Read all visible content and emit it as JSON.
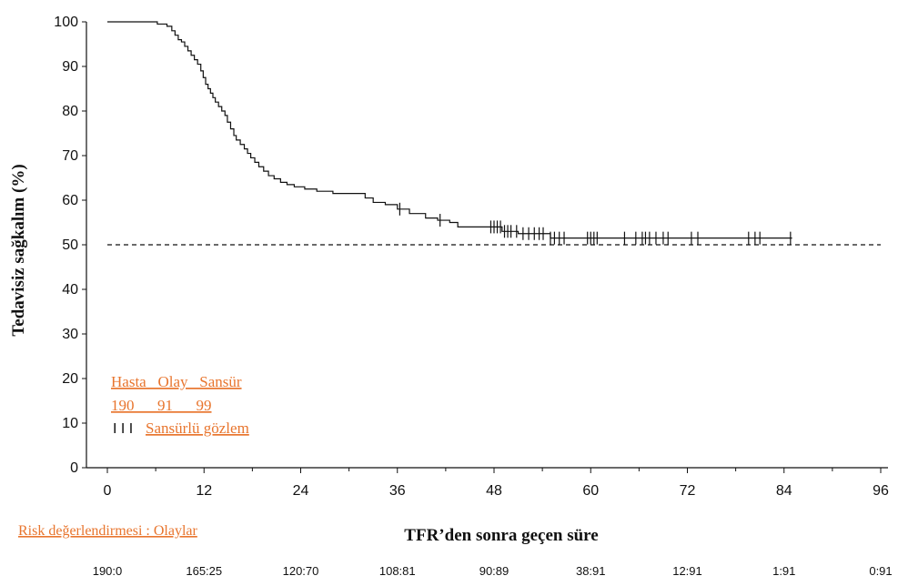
{
  "chart_data": {
    "type": "line",
    "ylabel": "Tedavisiz sağkalım (%)",
    "xlabel": "TFR’den sonra geçen süre",
    "xlim": [
      0,
      96
    ],
    "ylim": [
      0,
      100
    ],
    "xticks": [
      0,
      12,
      24,
      36,
      48,
      60,
      72,
      84,
      96
    ],
    "yticks": [
      0,
      10,
      20,
      30,
      40,
      50,
      60,
      70,
      80,
      90,
      100
    ],
    "reference_line_y": 50,
    "survival_curve": [
      [
        0,
        100
      ],
      [
        5.5,
        100
      ],
      [
        6.2,
        99.5
      ],
      [
        6.8,
        99.5
      ],
      [
        7.4,
        99
      ],
      [
        8,
        98
      ],
      [
        8.4,
        97
      ],
      [
        8.8,
        96
      ],
      [
        9.2,
        95.5
      ],
      [
        9.6,
        94.5
      ],
      [
        10,
        93.5
      ],
      [
        10.4,
        92.5
      ],
      [
        10.8,
        91.5
      ],
      [
        11.2,
        90.5
      ],
      [
        11.6,
        89
      ],
      [
        11.9,
        87.5
      ],
      [
        12.2,
        86
      ],
      [
        12.5,
        85
      ],
      [
        12.8,
        84
      ],
      [
        13.1,
        83
      ],
      [
        13.4,
        82
      ],
      [
        13.8,
        81
      ],
      [
        14.2,
        80
      ],
      [
        14.6,
        79
      ],
      [
        14.9,
        77.5
      ],
      [
        15.3,
        76
      ],
      [
        15.7,
        74.5
      ],
      [
        16,
        73.5
      ],
      [
        16.5,
        72.5
      ],
      [
        17,
        71.5
      ],
      [
        17.4,
        70.5
      ],
      [
        17.8,
        69.5
      ],
      [
        18.3,
        68.5
      ],
      [
        18.8,
        67.5
      ],
      [
        19.4,
        66.5
      ],
      [
        20,
        65.5
      ],
      [
        20.7,
        64.8
      ],
      [
        21.5,
        64
      ],
      [
        22.3,
        63.5
      ],
      [
        23.2,
        63
      ],
      [
        24.5,
        62.5
      ],
      [
        26,
        62
      ],
      [
        28,
        61.5
      ],
      [
        31,
        61.5
      ],
      [
        32,
        60.5
      ],
      [
        33,
        59.5
      ],
      [
        34.5,
        59
      ],
      [
        36,
        58
      ],
      [
        37.5,
        57
      ],
      [
        39.5,
        56
      ],
      [
        41,
        55.5
      ],
      [
        42.5,
        55
      ],
      [
        43.5,
        54
      ],
      [
        48,
        54
      ],
      [
        49,
        53
      ],
      [
        51,
        52.5
      ],
      [
        55,
        51.5
      ],
      [
        85,
        51.5
      ]
    ],
    "censor_marks": [
      36.3,
      41.3,
      47.6,
      48.0,
      48.4,
      48.8,
      49.3,
      49.7,
      50.1,
      50.8,
      51.6,
      52.3,
      53.0,
      53.6,
      54.1,
      55.0,
      55.5,
      56.1,
      56.7,
      59.6,
      60.0,
      60.4,
      60.8,
      64.2,
      65.6,
      66.4,
      66.8,
      67.3,
      68.1,
      69.0,
      69.6,
      72.5,
      73.3,
      79.6,
      80.4,
      81.0,
      84.8
    ],
    "annotations": {
      "header": "Hasta   Olay   Sansür",
      "values": "190      91      99",
      "censor_legend": "Sansürlü gözlem",
      "censor_glyph": "I I I"
    },
    "risk_table": {
      "label": "Risk değerlendirmesi : Olaylar",
      "values": [
        "190:0",
        "165:25",
        "120:70",
        "108:81",
        "90:89",
        "38:91",
        "12:91",
        "1:91",
        "0:91"
      ]
    }
  }
}
